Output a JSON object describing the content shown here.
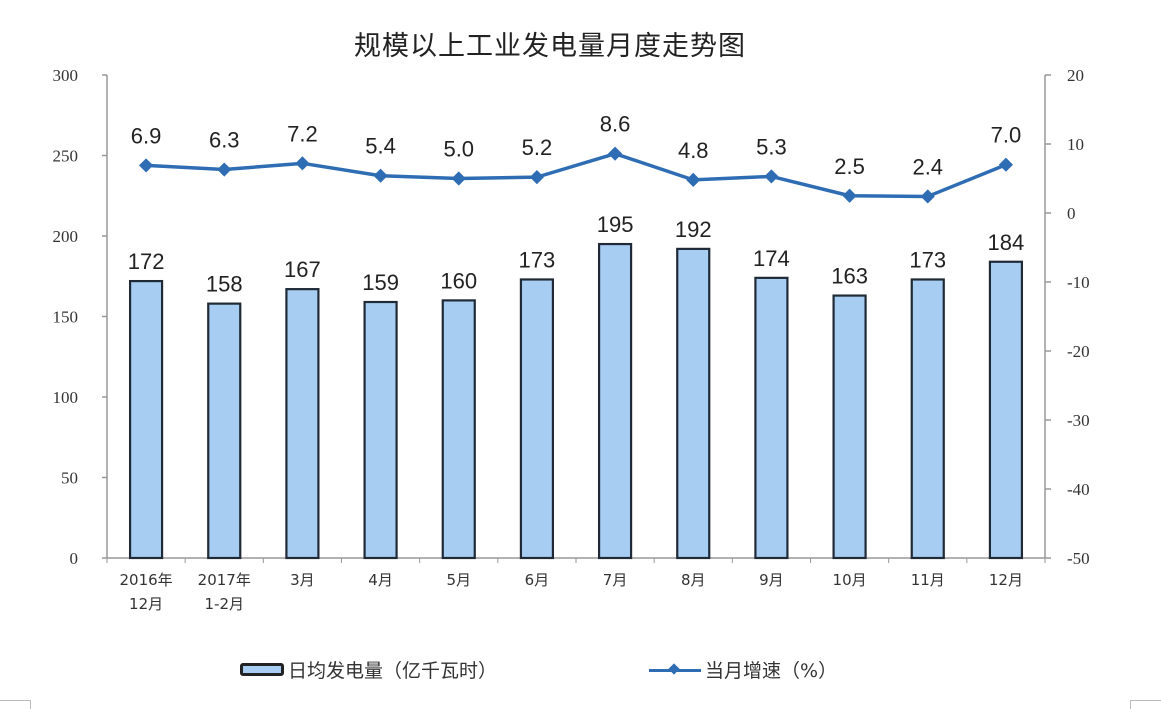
{
  "title": "规模以上工业发电量月度走势图",
  "colors": {
    "bar_fill": "#a7cdf2",
    "bar_stroke": "#1f2a36",
    "line": "#2e6db4",
    "axis": "#999999",
    "text": "#333333"
  },
  "legend": {
    "bar_label": "日均发电量（亿千瓦时）",
    "line_label": "当月增速（%）"
  },
  "chart_data": {
    "type": "bar+line",
    "title": "规模以上工业发电量月度走势图",
    "categories": [
      "2016年\n12月",
      "2017年\n1-2月",
      "3月",
      "4月",
      "5月",
      "6月",
      "7月",
      "8月",
      "9月",
      "10月",
      "11月",
      "12月"
    ],
    "category_lines": [
      [
        "2016年",
        "12月"
      ],
      [
        "2017年",
        "1-2月"
      ],
      [
        "3月"
      ],
      [
        "4月"
      ],
      [
        "5月"
      ],
      [
        "6月"
      ],
      [
        "7月"
      ],
      [
        "8月"
      ],
      [
        "9月"
      ],
      [
        "10月"
      ],
      [
        "11月"
      ],
      [
        "12月"
      ]
    ],
    "series": [
      {
        "name": "日均发电量（亿千瓦时）",
        "type": "bar",
        "axis": "left",
        "values": [
          172,
          158,
          167,
          159,
          160,
          173,
          195,
          192,
          174,
          163,
          173,
          184
        ]
      },
      {
        "name": "当月增速（%）",
        "type": "line",
        "axis": "right",
        "values": [
          6.9,
          6.3,
          7.2,
          5.4,
          5.0,
          5.2,
          8.6,
          4.8,
          5.3,
          2.5,
          2.4,
          7.0
        ],
        "labels": [
          "6.9",
          "6.3",
          "7.2",
          "5.4",
          "5.0",
          "5.2",
          "8.6",
          "4.8",
          "5.3",
          "2.5",
          "2.4",
          "7.0"
        ]
      }
    ],
    "y_left": {
      "min": 0,
      "max": 300,
      "ticks": [
        0,
        50,
        100,
        150,
        200,
        250,
        300
      ]
    },
    "y_right": {
      "min": -50,
      "max": 20,
      "ticks": [
        -50,
        -40,
        -30,
        -20,
        -10,
        0,
        10,
        20
      ]
    },
    "xlabel": "",
    "ylabel": "",
    "grid": false,
    "legend_position": "bottom"
  }
}
